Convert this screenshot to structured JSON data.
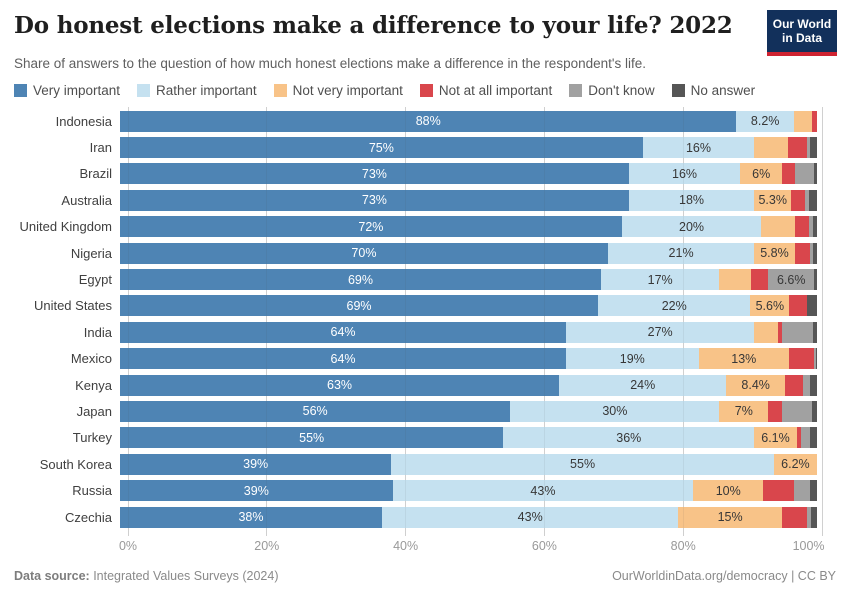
{
  "header": {
    "title": "Do honest elections make a difference to your life? 2022",
    "subtitle": "Share of answers to the question of how much honest elections make a difference in the respondent's life.",
    "logo": {
      "line1": "Our World",
      "line2": "in Data",
      "bg_color": "#12305b",
      "stripe_color": "#cf2331"
    }
  },
  "legend": {
    "position": "top",
    "items": [
      "Very important",
      "Rather important",
      "Not very important",
      "Not at all important",
      "Don't know",
      "No answer"
    ]
  },
  "chart_data": {
    "type": "bar",
    "stacked": true,
    "orientation": "horizontal",
    "title": "Do honest elections make a difference to your life? 2022",
    "xlabel": "",
    "ylabel": "",
    "xlim": [
      0,
      100
    ],
    "grid": true,
    "x_ticks": [
      "0%",
      "20%",
      "40%",
      "60%",
      "80%",
      "100%"
    ],
    "categories": [
      "Indonesia",
      "Iran",
      "Brazil",
      "Australia",
      "United Kingdom",
      "Nigeria",
      "Egypt",
      "United States",
      "India",
      "Mexico",
      "Kenya",
      "Japan",
      "Turkey",
      "South Korea",
      "Russia",
      "Czechia"
    ],
    "series": [
      {
        "name": "Very important",
        "color": "#4e84b4",
        "values": [
          88,
          75,
          73,
          73,
          72,
          70,
          69,
          69,
          64,
          64,
          63,
          56,
          55,
          39,
          39,
          38
        ]
      },
      {
        "name": "Rather important",
        "color": "#c5e1f0",
        "values": [
          8.2,
          16,
          16,
          18,
          20,
          21,
          17,
          22,
          27,
          19,
          24,
          30,
          36,
          55,
          43,
          43
        ]
      },
      {
        "name": "Not very important",
        "color": "#f8c388",
        "values": [
          2.6,
          4.9,
          6,
          5.3,
          4.9,
          5.8,
          4.5,
          5.6,
          3.4,
          13,
          8.4,
          7,
          6.1,
          6.2,
          10,
          15
        ]
      },
      {
        "name": "Not at all important",
        "color": "#d9464c",
        "values": [
          0.7,
          2.6,
          1.9,
          2.0,
          2.0,
          2.2,
          2.5,
          2.6,
          0.6,
          3.5,
          2.6,
          2.0,
          0.6,
          0,
          4.4,
          3.7
        ]
      },
      {
        "name": "Don't know",
        "color": "#a1a1a1",
        "values": [
          0,
          0.5,
          2.7,
          0.5,
          0.6,
          0.5,
          6.6,
          0,
          4.5,
          0.3,
          1.0,
          4.3,
          1.3,
          0,
          2.3,
          0.6
        ]
      },
      {
        "name": "No answer",
        "color": "#565656",
        "values": [
          0,
          1.0,
          0.4,
          1.2,
          0.5,
          0.5,
          0.4,
          1.4,
          0.5,
          0.2,
          1.0,
          0.7,
          1.0,
          0,
          1.0,
          0.8
        ]
      }
    ],
    "segment_labels": [
      [
        "88%",
        "8.2%",
        null,
        null,
        null,
        null
      ],
      [
        "75%",
        "16%",
        null,
        null,
        null,
        null
      ],
      [
        "73%",
        "16%",
        "6%",
        null,
        null,
        null
      ],
      [
        "73%",
        "18%",
        "5.3%",
        null,
        null,
        null
      ],
      [
        "72%",
        "20%",
        null,
        null,
        null,
        null
      ],
      [
        "70%",
        "21%",
        "5.8%",
        null,
        null,
        null
      ],
      [
        "69%",
        "17%",
        null,
        null,
        "6.6%",
        null
      ],
      [
        "69%",
        "22%",
        "5.6%",
        null,
        null,
        null
      ],
      [
        "64%",
        "27%",
        null,
        null,
        null,
        null
      ],
      [
        "64%",
        "19%",
        "13%",
        null,
        null,
        null
      ],
      [
        "63%",
        "24%",
        "8.4%",
        null,
        null,
        null
      ],
      [
        "56%",
        "30%",
        "7%",
        null,
        null,
        null
      ],
      [
        "55%",
        "36%",
        "6.1%",
        null,
        null,
        null
      ],
      [
        "39%",
        "55%",
        "6.2%",
        null,
        null,
        null
      ],
      [
        "39%",
        "43%",
        "10%",
        null,
        null,
        null
      ],
      [
        "38%",
        "43%",
        "15%",
        null,
        null,
        null
      ]
    ]
  },
  "footer": {
    "source_label": "Data source:",
    "source_value": " Integrated Values Surveys (2024)",
    "credit": "OurWorldinData.org/democracy | CC BY"
  }
}
